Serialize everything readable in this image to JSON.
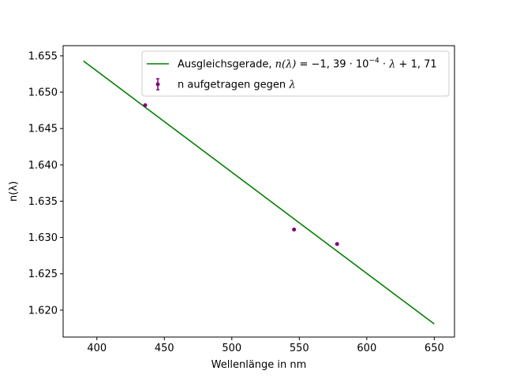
{
  "chart_data": {
    "type": "line",
    "xlabel": "Wellenlänge in nm",
    "ylabel": "n(λ)",
    "xlim": [
      375,
      665
    ],
    "ylim": [
      1.6163,
      1.6564
    ],
    "xticks": [
      400,
      450,
      500,
      550,
      600,
      650
    ],
    "xtick_labels": [
      "400",
      "450",
      "500",
      "550",
      "600",
      "650"
    ],
    "yticks": [
      1.62,
      1.625,
      1.63,
      1.635,
      1.64,
      1.645,
      1.65,
      1.655
    ],
    "ytick_labels": [
      "1.620",
      "1.625",
      "1.630",
      "1.635",
      "1.640",
      "1.645",
      "1.650",
      "1.655"
    ],
    "grid": false,
    "legend_position": "top-right",
    "series": [
      {
        "name": "Ausgleichsgerade, n(λ) = −1, 39 · 10⁻⁴ · λ + 1, 71",
        "kind": "line",
        "color": "#008000",
        "x": [
          390,
          650
        ],
        "y": [
          1.6543,
          1.6181
        ]
      },
      {
        "name": "n aufgetragen gegen λ",
        "kind": "errorbar-scatter",
        "color": "#800080",
        "x": [
          435.8,
          546.1,
          578.0
        ],
        "y": [
          1.6482,
          1.6311,
          1.6291
        ]
      }
    ],
    "legend": {
      "line_prefix": "Ausgleichsgerade, ",
      "line_formula_lhs": "n(λ)",
      "line_formula_rhs": " = −1, 39 · 10",
      "line_formula_exp": "−4",
      "line_formula_tail_a": " · ",
      "line_formula_lambda": "λ",
      "line_formula_tail_b": " + 1, 71",
      "points_prefix": "n aufgetragen gegen ",
      "points_lambda": "λ"
    }
  }
}
